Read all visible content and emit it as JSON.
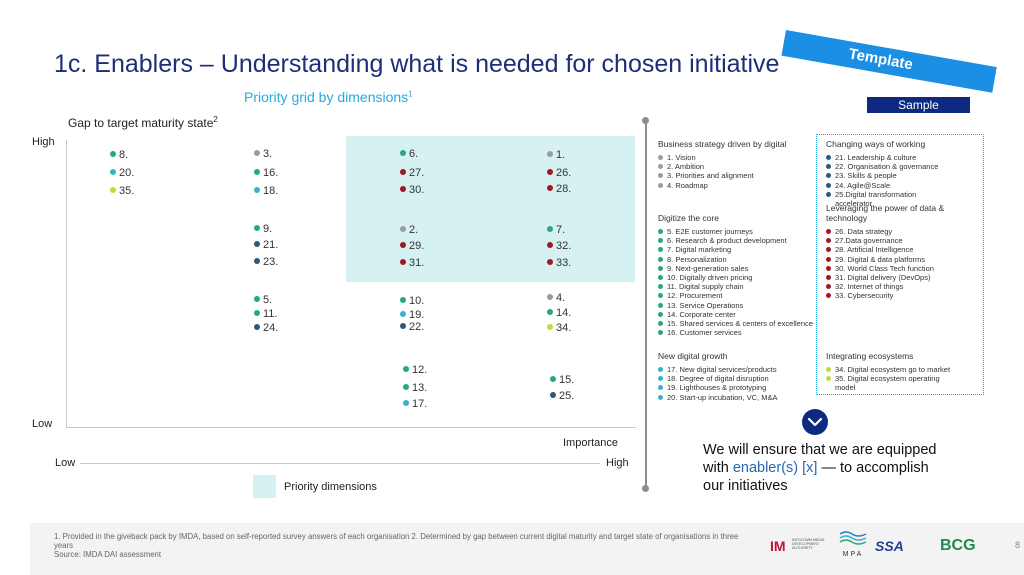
{
  "header": {
    "title": "1c. Enablers – Understanding what is needed for chosen initiative",
    "subtitle": "Priority grid by dimensions",
    "subtitle_sup": "1",
    "template_label": "Template",
    "sample_label": "Sample"
  },
  "grid": {
    "y_label": "Gap to target maturity state",
    "y_label_sup": "2",
    "y_high": "High",
    "y_low": "Low",
    "x_label": "Importance",
    "x_low": "Low",
    "x_high": "High",
    "legend_label": "Priority dimensions",
    "items": [
      {
        "label": "8.",
        "color": "#2aa876"
      },
      {
        "label": "20.",
        "color": "#35b3c9"
      },
      {
        "label": "35.",
        "color": "#c4d93b"
      },
      {
        "label": "3.",
        "color": "#9b9b9b"
      },
      {
        "label": "16.",
        "color": "#2aa876"
      },
      {
        "label": "18.",
        "color": "#35b3c9"
      },
      {
        "label": "6.",
        "color": "#2aa876"
      },
      {
        "label": "27.",
        "color": "#9c1b23"
      },
      {
        "label": "30.",
        "color": "#9c1b23"
      },
      {
        "label": "1.",
        "color": "#9b9b9b"
      },
      {
        "label": "26.",
        "color": "#9c1b23"
      },
      {
        "label": "28.",
        "color": "#9c1b23"
      },
      {
        "label": "9.",
        "color": "#2aa876"
      },
      {
        "label": "21.",
        "color": "#2a5a7a"
      },
      {
        "label": "23.",
        "color": "#2a5a7a"
      },
      {
        "label": "2.",
        "color": "#9b9b9b"
      },
      {
        "label": "29.",
        "color": "#9c1b23"
      },
      {
        "label": "31.",
        "color": "#9c1b23"
      },
      {
        "label": "7.",
        "color": "#2aa876"
      },
      {
        "label": "32.",
        "color": "#9c1b23"
      },
      {
        "label": "33.",
        "color": "#9c1b23"
      },
      {
        "label": "5.",
        "color": "#2aa876"
      },
      {
        "label": "11.",
        "color": "#2aa876"
      },
      {
        "label": "24.",
        "color": "#2a5a7a"
      },
      {
        "label": "10.",
        "color": "#2aa876"
      },
      {
        "label": "19.",
        "color": "#35b3c9"
      },
      {
        "label": "22.",
        "color": "#2a5a7a"
      },
      {
        "label": "4.",
        "color": "#9b9b9b"
      },
      {
        "label": "14.",
        "color": "#2aa876"
      },
      {
        "label": "34.",
        "color": "#c4d93b"
      },
      {
        "label": "12.",
        "color": "#2aa876"
      },
      {
        "label": "13.",
        "color": "#2aa876"
      },
      {
        "label": "17.",
        "color": "#35b3c9"
      },
      {
        "label": "15.",
        "color": "#2aa876"
      },
      {
        "label": "25.",
        "color": "#2a5a7a"
      }
    ]
  },
  "categories": [
    {
      "title": "Business strategy driven by digital",
      "color": "#9b9b9b",
      "items": [
        "1. Vision",
        "2. Ambition",
        "3. Priorities and alignment",
        "4. Roadmap"
      ]
    },
    {
      "title": "Changing ways of working",
      "color": "#2a5a7a",
      "items": [
        "21. Leadership & culture",
        "22. Organisation & governance",
        "23. Skills & people",
        "24. Agile@Scale",
        "25.Digital transformation",
        "accelerator"
      ]
    },
    {
      "title": "Digitize the core",
      "color": "#2aa876",
      "items": [
        "5. E2E customer journeys",
        "6. Research & product development",
        "7. Digital marketing",
        "8. Personalization",
        "9. Next-generation sales",
        "10. Digitally driven pricing",
        "11. Digital supply chain",
        "12. Procurement",
        "13. Service Operations",
        "14. Corporate center",
        "15. Shared services & centers of excellence",
        "16. Customer services"
      ]
    },
    {
      "title": "Leveraging the power of data & technology",
      "color": "#9c1b23",
      "items": [
        "26. Data strategy",
        "27.Data governance",
        "28. Artificial Intelligence",
        "29. Digital & data platforms",
        "30. World Class Tech function",
        "31. Digital delivery (DevOps)",
        "32. Internet of things",
        "33. Cybersecurity"
      ]
    },
    {
      "title": "New digital growth",
      "color": "#35b3c9",
      "items": [
        "17. New digital services/products",
        "18. Degree of digital disruption",
        "19. Lighthouses & prototyping",
        "20. Start-up incubation, VC, M&A"
      ]
    },
    {
      "title": "Integrating ecosystems",
      "color": "#c4d93b",
      "items": [
        "34. Digital ecosystem go to market",
        "35. Digital ecosystem operating",
        "model"
      ]
    }
  ],
  "conclusion": {
    "line1": "We will ensure that we are equipped",
    "line2_pre": "with ",
    "line2_accent": "enabler(s) [x]",
    "line2_post": " — to accomplish",
    "line3": "our initiatives"
  },
  "footer": {
    "note": "1. Provided in the giveback pack by IMDA, based on self-reported survey answers of each organisation  2. Determined by gap between current digital maturity and target state of organisations in three years",
    "source": "Source: IMDA DAI assessment",
    "page_number": "8",
    "logos": {
      "imda_mark": "IM",
      "imda_text": "INFOCOMM MEDIA DEVELOPMENT AUTHORITY",
      "mpa": "MPA",
      "ssa": "SSA",
      "bcg": "BCG"
    }
  }
}
